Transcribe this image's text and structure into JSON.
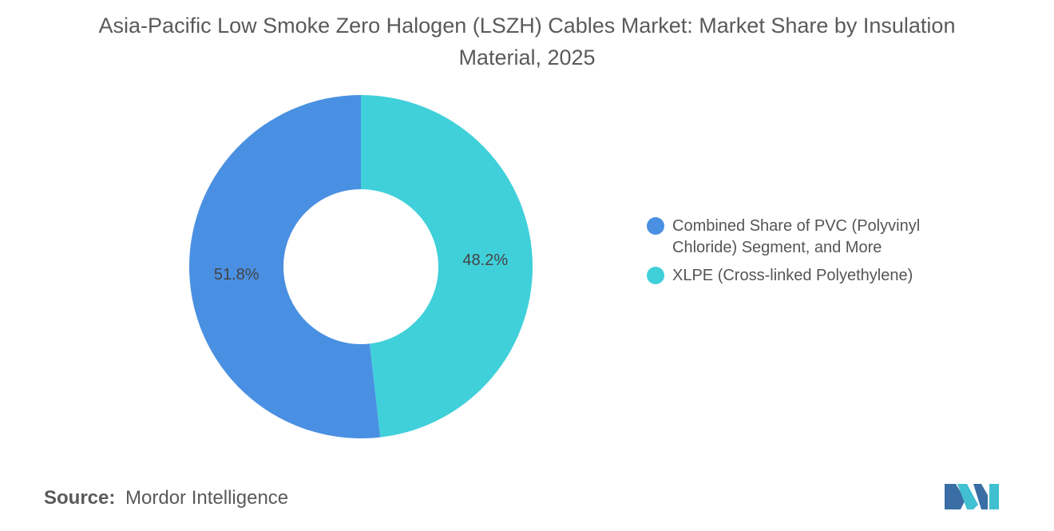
{
  "header": {
    "title": "Asia-Pacific Low Smoke Zero Halogen (LSZH) Cables Market: Market Share by Insulation Material, 2025"
  },
  "chart_data": {
    "type": "pie",
    "variant": "donut",
    "title": "Asia-Pacific Low Smoke Zero Halogen (LSZH) Cables Market: Market Share by Insulation Material, 2025",
    "categories": [
      "Combined Share of PVC (Polyvinyl Chloride) Segment, and More",
      "XLPE (Cross-linked Polyethylene)"
    ],
    "values": [
      51.8,
      48.2
    ],
    "value_labels": [
      "51.8%",
      "48.2%"
    ],
    "colors": [
      "#4a90e2",
      "#40d0da"
    ],
    "legend_position": "right"
  },
  "footer": {
    "source_label": "Source:",
    "source_text": "Mordor Intelligence"
  },
  "logo": {
    "icon": "mordor-intelligence-logo-icon",
    "colors": [
      "#3a6ea5",
      "#40c0d0"
    ]
  }
}
